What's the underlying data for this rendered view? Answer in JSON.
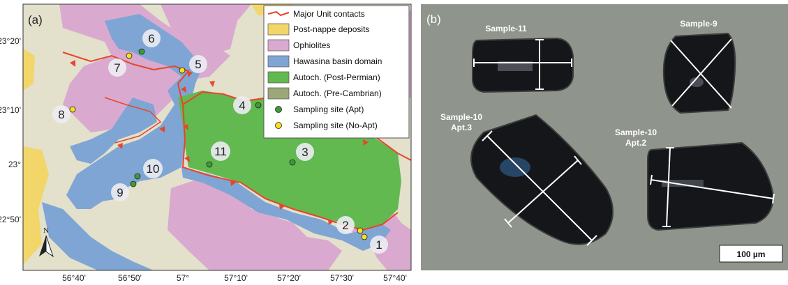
{
  "panel_a": {
    "label": "(a)",
    "legend": [
      {
        "key": "major-contacts",
        "text": "Major Unit contacts",
        "swatch": "line",
        "color": "#e8452a"
      },
      {
        "key": "post-nappe",
        "text": "Post-nappe deposits",
        "swatch": "box",
        "color": "#f2d66a"
      },
      {
        "key": "ophiolites",
        "text": "Ophiolites",
        "swatch": "box",
        "color": "#d9a9cf"
      },
      {
        "key": "hawasina",
        "text": "Hawasina basin domain",
        "swatch": "box",
        "color": "#7fa5d4"
      },
      {
        "key": "autoch-post-permian",
        "text": "Autoch. (Post-Permian)",
        "swatch": "box",
        "color": "#62b94f"
      },
      {
        "key": "autoch-pre-cambrian",
        "text": "Autoch. (Pre-Cambrian)",
        "swatch": "box",
        "color": "#9aa877"
      },
      {
        "key": "site-apt",
        "text": "Sampling site (Apt)",
        "swatch": "dot",
        "color": "#3f9a3a"
      },
      {
        "key": "site-no-apt",
        "text": "Sampling site (No-Apt)",
        "swatch": "dot",
        "color": "#f6e21a"
      }
    ],
    "lat_ticks": [
      "23°20'",
      "23°10'",
      "23°",
      "22°50'"
    ],
    "lon_ticks": [
      "56°40'",
      "56°50'",
      "57°",
      "57°10'",
      "57°20'",
      "57°30'",
      "57°40'"
    ],
    "sites": [
      {
        "num": "1",
        "type": "no-apt"
      },
      {
        "num": "2",
        "type": "no-apt"
      },
      {
        "num": "3",
        "type": "apt"
      },
      {
        "num": "4",
        "type": "apt"
      },
      {
        "num": "5",
        "type": "no-apt"
      },
      {
        "num": "6",
        "type": "apt"
      },
      {
        "num": "7",
        "type": "no-apt"
      },
      {
        "num": "8",
        "type": "no-apt"
      },
      {
        "num": "9",
        "type": "apt"
      },
      {
        "num": "10",
        "type": "apt"
      },
      {
        "num": "11",
        "type": "apt"
      }
    ],
    "north_label": "N"
  },
  "panel_b": {
    "label": "(b)",
    "samples": [
      {
        "key": "s11",
        "text": "Sample-11"
      },
      {
        "key": "s9",
        "text": "Sample-9"
      },
      {
        "key": "s10a3",
        "line1": "Sample-10",
        "line2": "Apt.3"
      },
      {
        "key": "s10a2",
        "line1": "Sample-10",
        "line2": "Apt.2"
      }
    ],
    "scale_bar": "100 µm"
  }
}
